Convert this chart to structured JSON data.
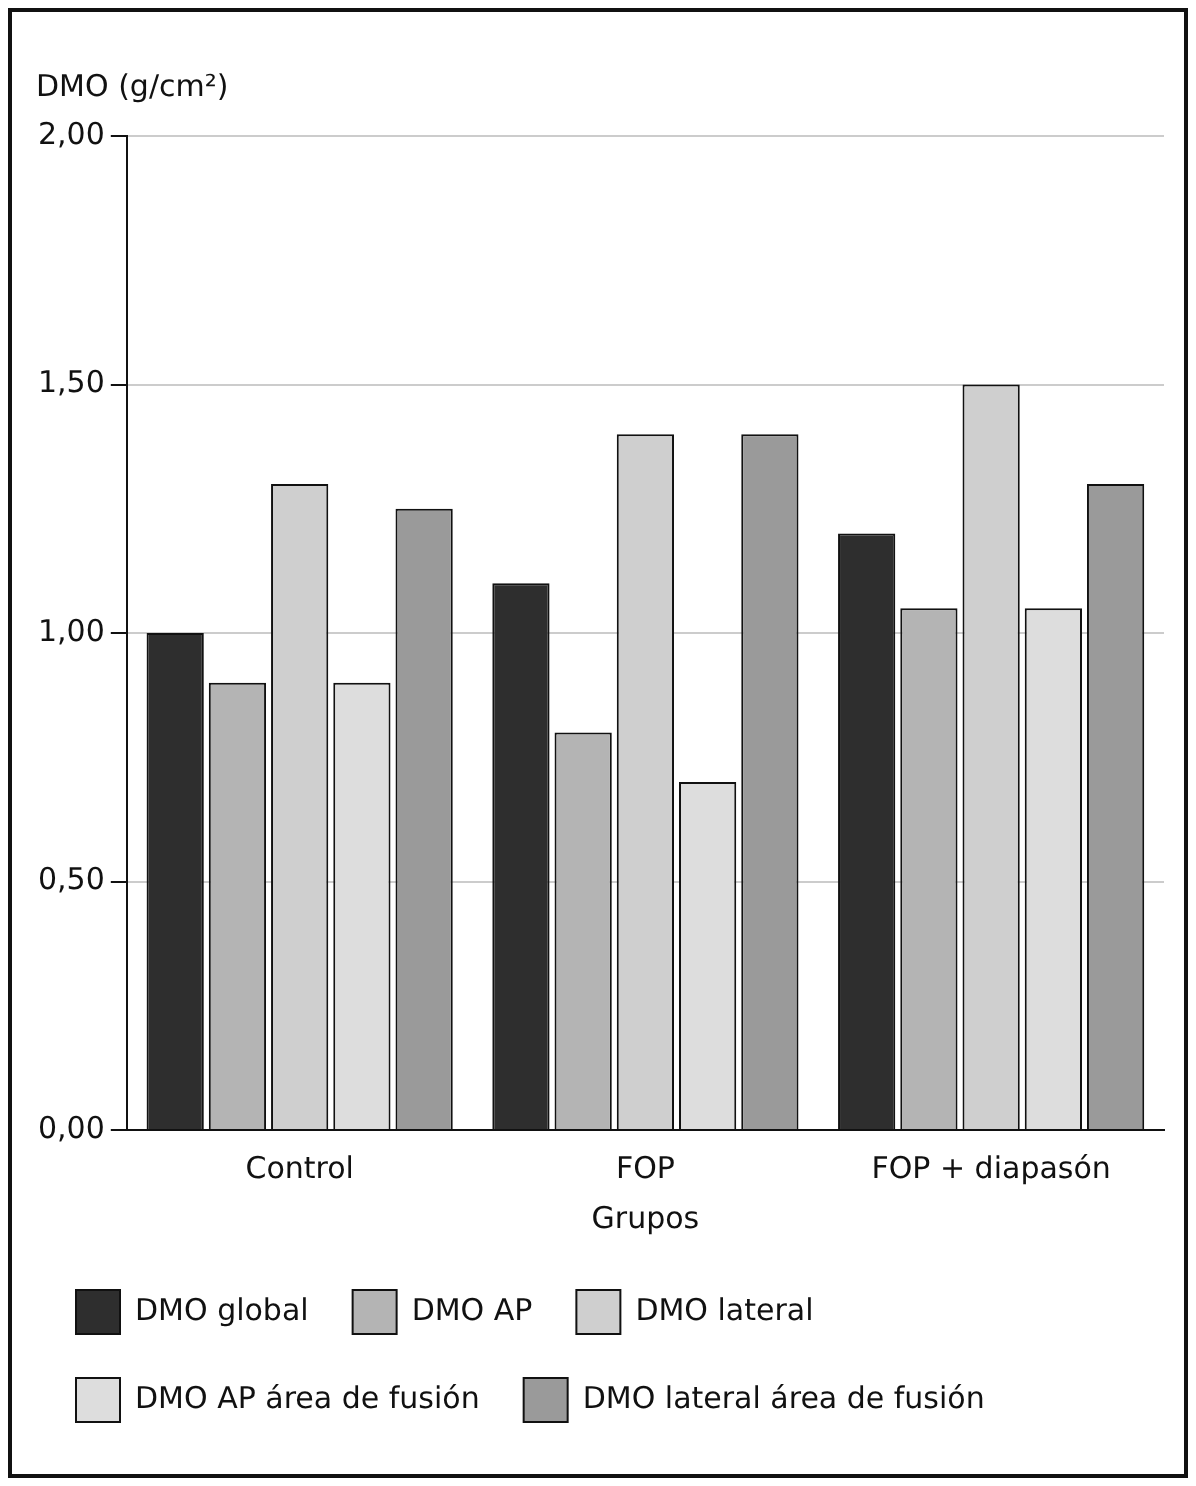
{
  "chart_data": {
    "type": "bar",
    "ylabel": "DMO (g/cm²)",
    "xlabel": "Grupos",
    "categories": [
      "Control",
      "FOP",
      "FOP + diapasón"
    ],
    "series": [
      {
        "name": "DMO global",
        "color": "#2e2e2e",
        "values": [
          1.0,
          1.1,
          1.2
        ]
      },
      {
        "name": "DMO AP",
        "color": "#b4b4b4",
        "values": [
          0.9,
          0.8,
          1.05
        ]
      },
      {
        "name": "DMO lateral",
        "color": "#cfcfcf",
        "values": [
          1.3,
          1.4,
          1.5
        ]
      },
      {
        "name": "DMO AP área de fusión",
        "color": "#dddddd",
        "values": [
          0.9,
          0.7,
          1.05
        ]
      },
      {
        "name": "DMO lateral área de fusión",
        "color": "#9a9a9a",
        "values": [
          1.25,
          1.4,
          1.3
        ]
      }
    ],
    "ylim": [
      0,
      2
    ],
    "yticks": [
      {
        "value": 0,
        "label": "0,00"
      },
      {
        "value": 0.5,
        "label": "0,50"
      },
      {
        "value": 1,
        "label": "1,00"
      },
      {
        "value": 1.5,
        "label": "1,50"
      },
      {
        "value": 2,
        "label": "2,00"
      }
    ],
    "grid": "y",
    "legend": "bottom"
  }
}
